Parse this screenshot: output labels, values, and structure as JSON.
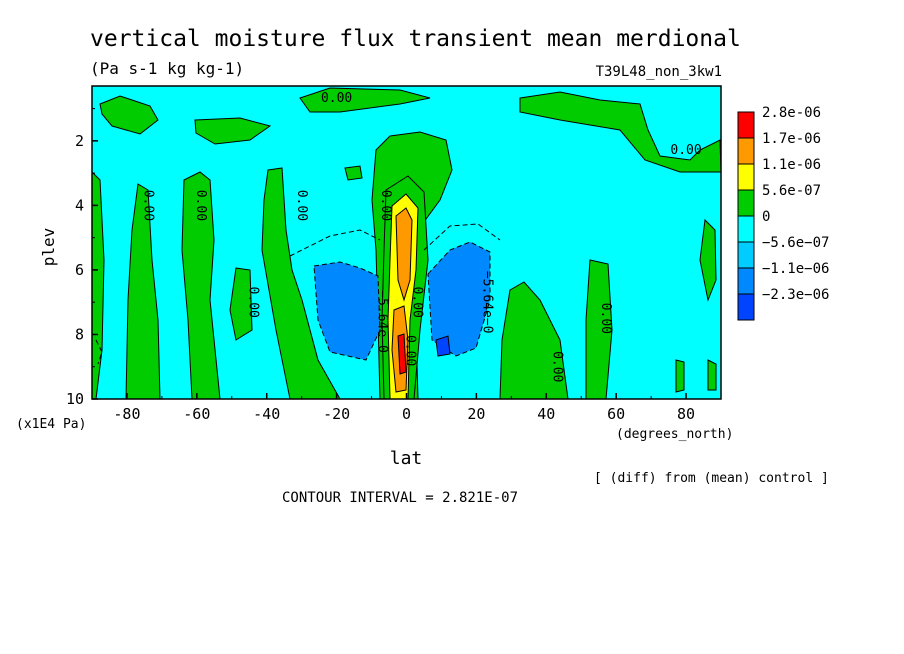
{
  "title": "vertical moisture flux transient mean merdional",
  "units": "(Pa s-1 kg kg-1)",
  "run_name": "T39L48_non_3kw1",
  "ylabel": "plev",
  "y_multiplier": "(x1E4 Pa)",
  "xlabel": "lat",
  "x_units": "(degrees_north)",
  "diff_note": "[ (diff) from (mean) control ]",
  "contour_interval": "CONTOUR INTERVAL = 2.821E-07",
  "colors": {
    "c_max": "#ff0000",
    "c_4": "#ff9900",
    "c_3": "#ffff00",
    "c_2": "#00cc00",
    "c_1": "#00ffff",
    "c_n1": "#00ccff",
    "c_n2": "#0088ff",
    "c_n3": "#0044ff"
  },
  "chart_data": {
    "type": "heatmap",
    "x_ticks": [
      -80,
      -60,
      -40,
      -20,
      0,
      20,
      40,
      60,
      80
    ],
    "y_ticks": [
      2,
      4,
      6,
      8,
      10
    ],
    "xlim": [
      -90,
      90
    ],
    "ylim": [
      10,
      0.3
    ],
    "legend": [
      {
        "label": "2.8e-06",
        "color": "#ff0000"
      },
      {
        "label": "1.7e-06",
        "color": "#ff9900"
      },
      {
        "label": "1.1e-06",
        "color": "#ffff00"
      },
      {
        "label": "5.6e-07",
        "color": "#00cc00"
      },
      {
        "label": "0",
        "color": "#00ffff"
      },
      {
        "label": "−5.6e−07",
        "color": "#00ccff"
      },
      {
        "label": "−1.1e−06",
        "color": "#0088ff"
      },
      {
        "label": "−2.3e−06",
        "color": "#0044ff"
      }
    ],
    "contour_labels": [
      {
        "text": "0.00",
        "lat": -20,
        "plev": 0.8
      },
      {
        "text": "0.00",
        "lat": 80,
        "plev": 2.4
      },
      {
        "text": "0.00",
        "lat": -75,
        "plev": 4
      },
      {
        "text": "0.00",
        "lat": -60,
        "plev": 4
      },
      {
        "text": "0.00",
        "lat": -31,
        "plev": 4
      },
      {
        "text": "0.00",
        "lat": -7,
        "plev": 4
      },
      {
        "text": "0.00",
        "lat": -45,
        "plev": 7
      },
      {
        "text": "0.00",
        "lat": 56,
        "plev": 7.5
      },
      {
        "text": "0.00",
        "lat": 42,
        "plev": 9
      },
      {
        "text": "−5.64e−0",
        "lat": -8,
        "plev": 7.6
      },
      {
        "text": "−5.64e−0",
        "lat": 22,
        "plev": 7
      },
      {
        "text": "0.00",
        "lat": 2,
        "plev": 7
      },
      {
        "text": "0.00",
        "lat": 0,
        "plev": 8.5
      }
    ]
  }
}
